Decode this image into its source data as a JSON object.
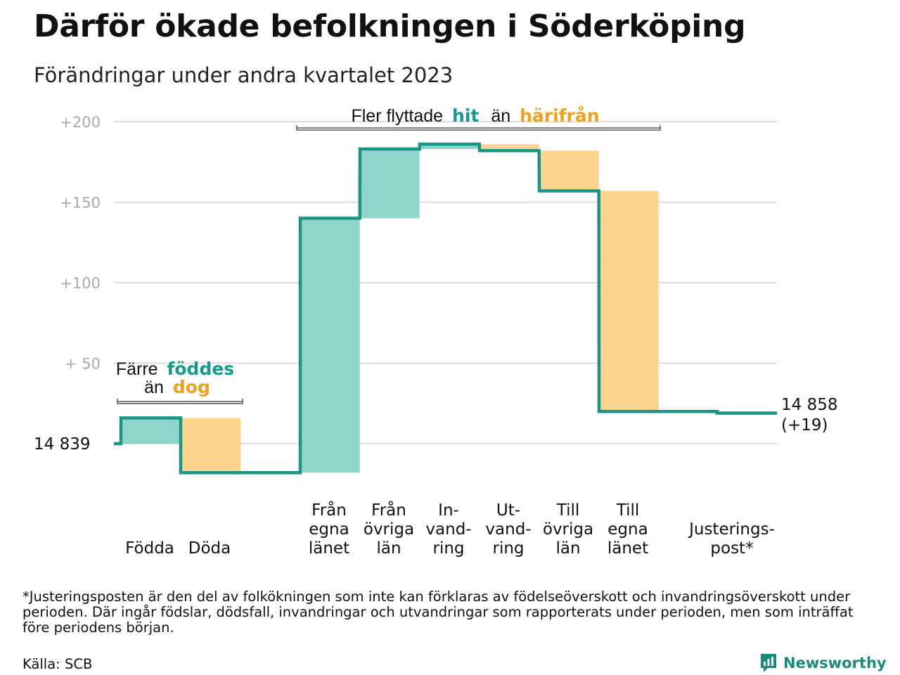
{
  "title": "Därför ökade befolkningen i Söderköping",
  "subtitle": "Förändringar under andra kvartalet 2023",
  "colors": {
    "increase": "#8fd5cc",
    "decrease": "#fbd58e",
    "line": "#1a9484",
    "accent_teal": "#14998a",
    "accent_orange": "#f0a020",
    "grid": "#dddddd",
    "tick_text": "#aaaaaa"
  },
  "chart_data": {
    "type": "waterfall",
    "title": "",
    "start_value": 14839,
    "start_label": "14  839",
    "end_label_value": "14 858",
    "end_label_change": "(+19)",
    "ylim": [
      -18,
      205
    ],
    "yticks": [
      {
        "value": 200,
        "label": "+200"
      },
      {
        "value": 150,
        "label": "+150"
      },
      {
        "value": 100,
        "label": "+100"
      },
      {
        "value": 50,
        "label": "+  50"
      }
    ],
    "steps": [
      {
        "name": "Födda",
        "label_lines": [
          "Födda"
        ],
        "start": 0,
        "end": 16
      },
      {
        "name": "Döda",
        "label_lines": [
          "Döda"
        ],
        "start": 16,
        "end": -18
      },
      {
        "name": "Från egna länet",
        "label_lines": [
          "Från",
          "egna",
          "länet"
        ],
        "start": -18,
        "end": 140
      },
      {
        "name": "Från övriga län",
        "label_lines": [
          "Från",
          "övriga",
          "län"
        ],
        "start": 140,
        "end": 183
      },
      {
        "name": "Invandring",
        "label_lines": [
          "In-",
          "vand-",
          "ring"
        ],
        "start": 183,
        "end": 186
      },
      {
        "name": "Utvandring",
        "label_lines": [
          "Ut-",
          "vand-",
          "ring"
        ],
        "start": 186,
        "end": 182
      },
      {
        "name": "Till övriga län",
        "label_lines": [
          "Till",
          "övriga",
          "län"
        ],
        "start": 182,
        "end": 157
      },
      {
        "name": "Till egna länet",
        "label_lines": [
          "Till",
          "egna",
          "länet"
        ],
        "start": 157,
        "end": 20
      },
      {
        "name": "Justeringspost",
        "label_lines": [
          "Justerings-",
          "post*"
        ],
        "start": 20,
        "end": 19
      }
    ],
    "annotations": {
      "births": {
        "line1": "Färre",
        "word1": "föddes",
        "line2": "än",
        "word2": "dog"
      },
      "moves": {
        "prefix": "Fler flyttade",
        "word1": "hit",
        "mid": "än",
        "word2": "härifrån"
      }
    }
  },
  "footnote": "*Justeringsposten är den del av folkökningen som inte kan förklaras av födelseöverskott och invandringsöverskott under perioden. Där ingår födslar, dödsfall, invandringar och utvandringar som rapporterats under perioden, men som inträffat före periodens början.",
  "source": "Källa: SCB",
  "brand": "Newsworthy"
}
